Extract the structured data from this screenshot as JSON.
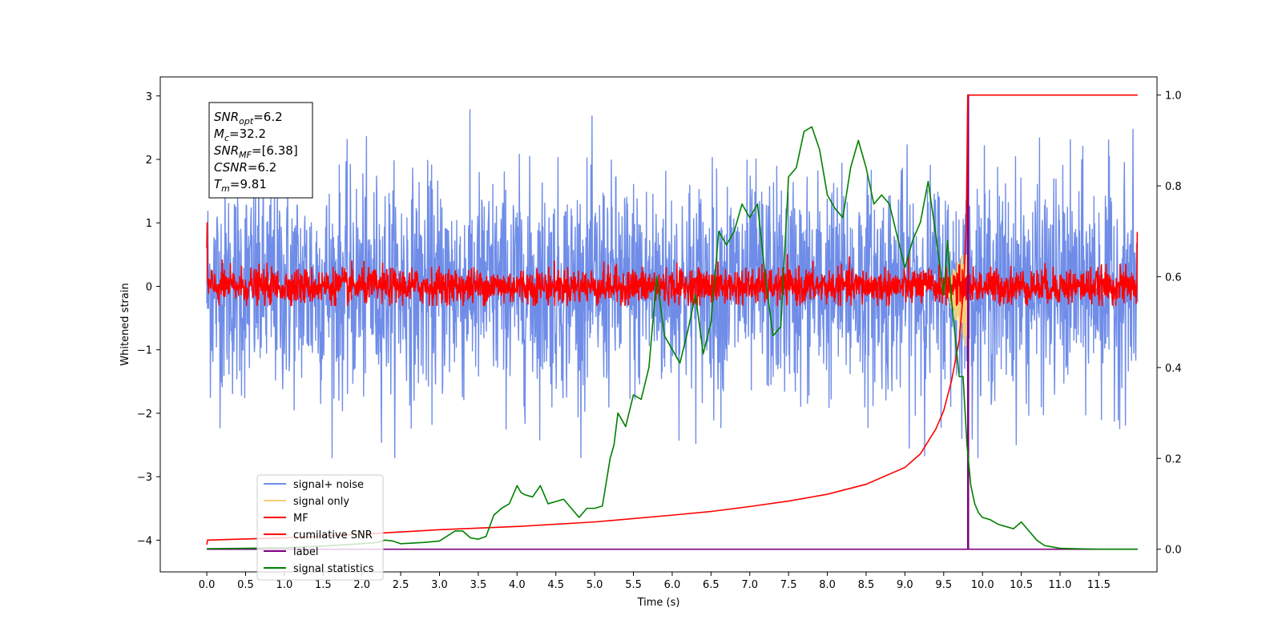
{
  "chart_data": {
    "type": "line",
    "xlabel": "Time (s)",
    "ylabel": "Whitened strain",
    "xlim": [
      -0.6,
      12.25
    ],
    "ylim": [
      -4.5,
      3.3
    ],
    "y2lim": [
      -0.05,
      1.04
    ],
    "x_ticks": [
      "0.0",
      "0.5",
      "1.0",
      "1.5",
      "2.0",
      "2.5",
      "3.0",
      "3.5",
      "4.0",
      "4.5",
      "5.0",
      "5.5",
      "6.0",
      "6.5",
      "7.0",
      "7.5",
      "8.0",
      "8.5",
      "9.0",
      "9.5",
      "10.0",
      "10.5",
      "11.0",
      "11.5"
    ],
    "y_ticks": [
      "−4",
      "−3",
      "−2",
      "−1",
      "0",
      "1",
      "2",
      "3"
    ],
    "y2_ticks": [
      "0.0",
      "0.2",
      "0.4",
      "0.6",
      "0.8",
      "1.0"
    ],
    "annotation": {
      "lines": [
        {
          "base": "SNR",
          "sub": "opt",
          "value": "=6.2"
        },
        {
          "base": "M",
          "sub": "c",
          "value": "=32.2"
        },
        {
          "base": "SNR",
          "sub": "MF",
          "value": "=[6.38]"
        },
        {
          "base": "CSNR",
          "sub": "",
          "value": "=6.2"
        },
        {
          "base": "T",
          "sub": "m",
          "value": "=9.81"
        }
      ]
    },
    "legend": {
      "placement": "lower-left",
      "entries": [
        {
          "label": "signal+ noise",
          "color": "#6f8de8"
        },
        {
          "label": "signal only",
          "color": "#f6cf7a"
        },
        {
          "label": "MF",
          "color": "#ff0000"
        },
        {
          "label": "cumilative SNR",
          "color": "#ff0000"
        },
        {
          "label": "label",
          "color": "#800080"
        },
        {
          "label": "signal statistics",
          "color": "#008000"
        }
      ]
    },
    "series": [
      {
        "name": "signal+ noise",
        "axis": "left",
        "color": "#6f8de8",
        "x_range": [
          0.0,
          12.0
        ],
        "amplitude_std": 0.85,
        "peak_range": [
          -2.7,
          3.0
        ]
      },
      {
        "name": "signal only",
        "axis": "left",
        "color": "#f6cf7a",
        "x_range": [
          9.5,
          9.81
        ],
        "peak_range": [
          -1.0,
          0.5
        ]
      },
      {
        "name": "MF",
        "axis": "left",
        "color": "#ff0000",
        "x_range": [
          0.0,
          12.0
        ],
        "amplitude_std": 0.14,
        "peak_range": [
          -0.3,
          0.55
        ],
        "edge_values": [
          1.0,
          0.85
        ]
      },
      {
        "name": "label",
        "axis": "right",
        "color": "#800080",
        "x": [
          0.0,
          9.81,
          9.81,
          9.82,
          9.82,
          12.0
        ],
        "y": [
          0.0,
          0.0,
          1.0,
          1.0,
          0.0,
          0.0
        ]
      },
      {
        "name": "cumilative SNR",
        "axis": "right",
        "color": "#ff0000",
        "x": [
          0.0,
          0.01,
          1.0,
          2.0,
          3.0,
          4.0,
          5.0,
          6.0,
          6.5,
          7.0,
          7.5,
          8.0,
          8.5,
          9.0,
          9.2,
          9.4,
          9.5,
          9.6,
          9.7,
          9.75,
          9.79,
          9.8,
          9.81,
          12.0
        ],
        "y": [
          0.01,
          0.02,
          0.025,
          0.033,
          0.043,
          0.05,
          0.06,
          0.075,
          0.083,
          0.094,
          0.106,
          0.121,
          0.143,
          0.18,
          0.21,
          0.265,
          0.305,
          0.37,
          0.46,
          0.56,
          0.7,
          0.85,
          1.0,
          1.0
        ]
      },
      {
        "name": "signal statistics",
        "axis": "right",
        "color": "#008000",
        "x": [
          0.0,
          0.5,
          1.0,
          1.5,
          2.0,
          2.2,
          2.3,
          2.4,
          2.5,
          2.8,
          3.0,
          3.2,
          3.3,
          3.4,
          3.5,
          3.6,
          3.7,
          3.8,
          3.9,
          4.0,
          4.05,
          4.1,
          4.2,
          4.3,
          4.4,
          4.5,
          4.6,
          4.7,
          4.8,
          4.9,
          5.0,
          5.1,
          5.2,
          5.25,
          5.3,
          5.4,
          5.5,
          5.6,
          5.7,
          5.8,
          5.9,
          6.0,
          6.1,
          6.2,
          6.3,
          6.4,
          6.5,
          6.6,
          6.7,
          6.8,
          6.9,
          7.0,
          7.1,
          7.2,
          7.3,
          7.4,
          7.5,
          7.6,
          7.7,
          7.8,
          7.9,
          8.0,
          8.1,
          8.2,
          8.3,
          8.4,
          8.5,
          8.6,
          8.7,
          8.8,
          8.9,
          9.0,
          9.1,
          9.2,
          9.3,
          9.4,
          9.5,
          9.55,
          9.6,
          9.7,
          9.75,
          9.8,
          9.85,
          9.9,
          9.95,
          10.0,
          10.1,
          10.2,
          10.3,
          10.4,
          10.5,
          10.6,
          10.7,
          10.8,
          10.9,
          11.0,
          11.2,
          11.5,
          11.8,
          12.0
        ],
        "y": [
          0.001,
          0.002,
          0.003,
          0.007,
          0.012,
          0.015,
          0.02,
          0.018,
          0.012,
          0.015,
          0.018,
          0.04,
          0.04,
          0.025,
          0.022,
          0.028,
          0.075,
          0.09,
          0.1,
          0.14,
          0.125,
          0.12,
          0.115,
          0.14,
          0.1,
          0.105,
          0.11,
          0.09,
          0.07,
          0.09,
          0.09,
          0.095,
          0.2,
          0.23,
          0.3,
          0.27,
          0.34,
          0.33,
          0.4,
          0.6,
          0.47,
          0.44,
          0.41,
          0.48,
          0.56,
          0.43,
          0.5,
          0.7,
          0.67,
          0.7,
          0.76,
          0.73,
          0.76,
          0.6,
          0.47,
          0.49,
          0.82,
          0.84,
          0.92,
          0.93,
          0.88,
          0.78,
          0.75,
          0.73,
          0.84,
          0.9,
          0.84,
          0.76,
          0.78,
          0.76,
          0.69,
          0.62,
          0.68,
          0.72,
          0.81,
          0.69,
          0.56,
          0.68,
          0.55,
          0.38,
          0.38,
          0.23,
          0.14,
          0.1,
          0.08,
          0.07,
          0.065,
          0.055,
          0.05,
          0.045,
          0.06,
          0.04,
          0.02,
          0.008,
          0.005,
          0.002,
          0.001,
          0.0,
          0.0,
          0.0
        ]
      }
    ]
  }
}
